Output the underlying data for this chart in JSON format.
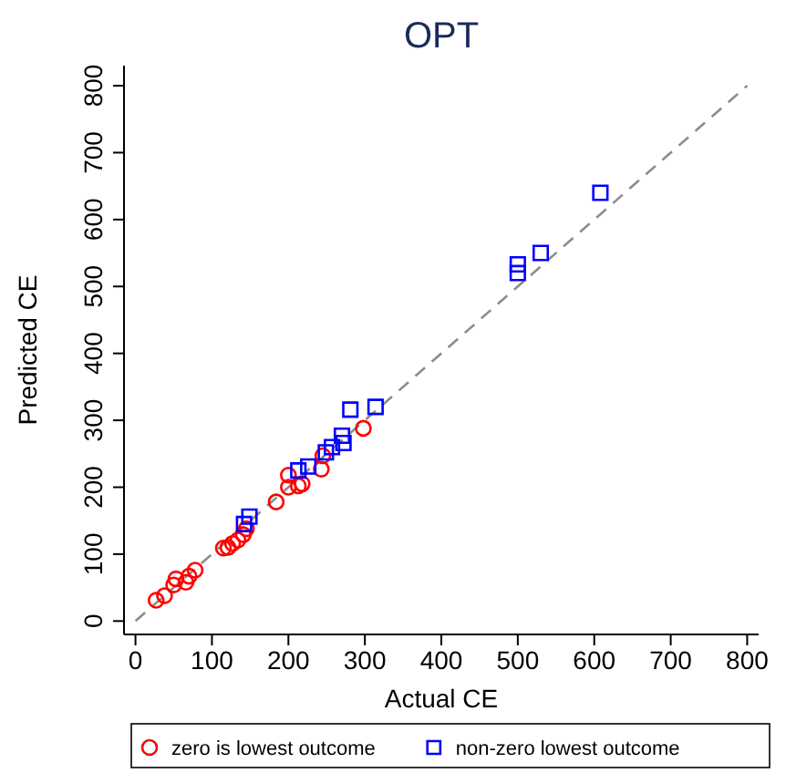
{
  "chart_data": {
    "type": "scatter",
    "title": "OPT",
    "xlabel": "Actual CE",
    "ylabel": "Predicted CE",
    "xlim": [
      -15,
      815
    ],
    "ylim": [
      -20,
      830
    ],
    "xticks": [
      0,
      100,
      200,
      300,
      400,
      500,
      600,
      700,
      800
    ],
    "yticks": [
      0,
      100,
      200,
      300,
      400,
      500,
      600,
      700,
      800
    ],
    "grid": false,
    "legend": "bottom",
    "series": [
      {
        "type": "line",
        "color": "#8c8c8c",
        "line_style": "dashed",
        "marker": "none",
        "x": [
          0,
          800
        ],
        "values": [
          0,
          800
        ]
      },
      {
        "name": "zero is lowest outcome",
        "color": "#ff0000",
        "marker": "circle",
        "x": [
          27,
          38,
          50,
          53,
          66,
          70,
          78,
          115,
          121,
          127,
          134,
          141,
          145,
          184,
          200,
          200,
          213,
          218,
          243,
          245,
          298
        ],
        "values": [
          31,
          38,
          54,
          63,
          58,
          67,
          76,
          109,
          110,
          116,
          121,
          129,
          138,
          178,
          218,
          200,
          202,
          205,
          227,
          247,
          288
        ]
      },
      {
        "name": "non-zero lowest outcome",
        "color": "#0000ff",
        "marker": "square",
        "x": [
          142,
          149,
          213,
          226,
          249,
          257,
          270,
          272,
          281,
          314,
          500,
          500,
          530,
          608
        ],
        "values": [
          145,
          156,
          225,
          231,
          252,
          260,
          277,
          266,
          316,
          320,
          533,
          520,
          550,
          640
        ]
      }
    ]
  }
}
